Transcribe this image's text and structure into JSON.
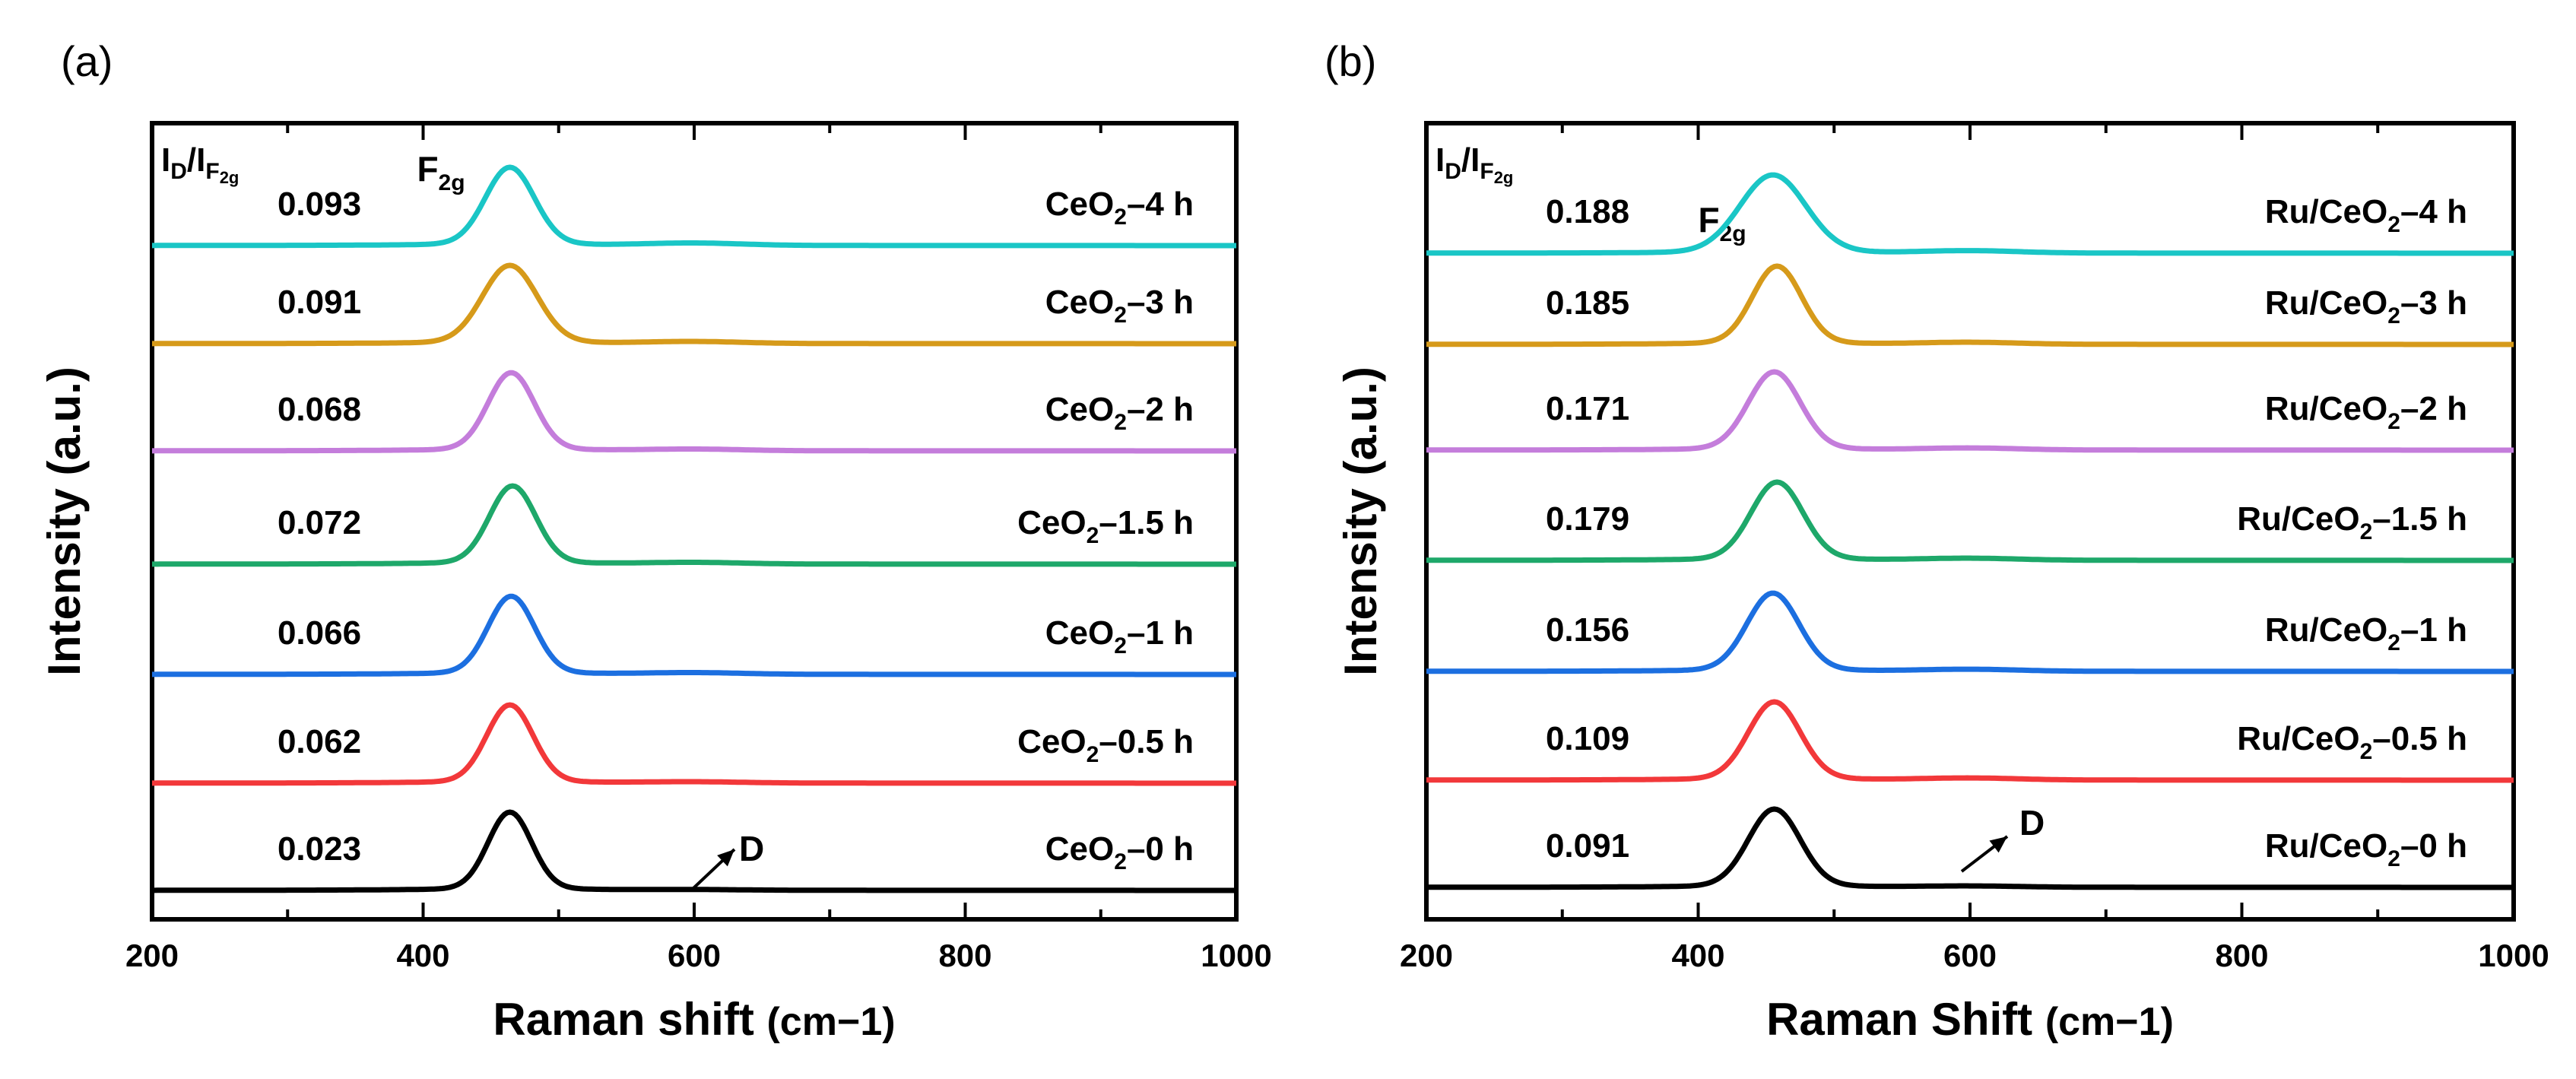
{
  "chart_data": [
    {
      "type": "line",
      "panel_label": "(a)",
      "xlabel": "Raman shift",
      "xunit": "(cm−1)",
      "ylabel": "Intensity (a.u.)",
      "xlim": [
        200,
        1000
      ],
      "xticks": [
        "200",
        "400",
        "600",
        "800",
        "1000"
      ],
      "y_ticks_shown": false,
      "ratio_header": "ID/IF2g",
      "peak_annotation": "F2g",
      "defect_annotation": "D",
      "f2g_peak_position": 464,
      "d_band_position": 600,
      "series": [
        {
          "name": "CeO2–4 h",
          "label_prefix": "CeO",
          "label_sub": "2",
          "label_suffix": "–4 h",
          "ratio": "0.093",
          "color": "#1ac6c6",
          "peak_center": 464,
          "peak_width": 18,
          "d_amp": 0.06
        },
        {
          "name": "CeO2–3 h",
          "label_prefix": "CeO",
          "label_sub": "2",
          "label_suffix": "–3 h",
          "ratio": "0.091",
          "color": "#d69a1a",
          "peak_center": 464,
          "peak_width": 20,
          "d_amp": 0.05
        },
        {
          "name": "CeO2–2 h",
          "label_prefix": "CeO",
          "label_sub": "2",
          "label_suffix": "–2 h",
          "ratio": "0.068",
          "color": "#c47ddb",
          "peak_center": 465,
          "peak_width": 17,
          "d_amp": 0.04
        },
        {
          "name": "CeO2–1.5 h",
          "label_prefix": "CeO",
          "label_sub": "2",
          "label_suffix": "–1.5 h",
          "ratio": "0.072",
          "color": "#1ea86a",
          "peak_center": 466,
          "peak_width": 17,
          "d_amp": 0.04
        },
        {
          "name": "CeO2–1 h",
          "label_prefix": "CeO",
          "label_sub": "2",
          "label_suffix": "–1 h",
          "ratio": "0.066",
          "color": "#1c6fe0",
          "peak_center": 465,
          "peak_width": 17,
          "d_amp": 0.04
        },
        {
          "name": "CeO2–0.5 h",
          "label_prefix": "CeO",
          "label_sub": "2",
          "label_suffix": "–0.5 h",
          "ratio": "0.062",
          "color": "#f2383a",
          "peak_center": 464,
          "peak_width": 17,
          "d_amp": 0.03
        },
        {
          "name": "CeO2–0 h",
          "label_prefix": "CeO",
          "label_sub": "2",
          "label_suffix": "–0 h",
          "ratio": "0.023",
          "color": "#000000",
          "peak_center": 464,
          "peak_width": 16,
          "d_amp": 0.015
        }
      ]
    },
    {
      "type": "line",
      "panel_label": "(b)",
      "xlabel": "Raman Shift",
      "xunit": "(cm−1)",
      "ylabel": "Intensity (a.u.)",
      "xlim": [
        200,
        1000
      ],
      "xticks": [
        "200",
        "400",
        "600",
        "800",
        "1000"
      ],
      "y_ticks_shown": false,
      "ratio_header": "ID/IF2g",
      "peak_annotation": "F2g",
      "defect_annotation": "D",
      "f2g_peak_position": 456,
      "d_band_position": 600,
      "series": [
        {
          "name": "Ru/CeO2–4 h",
          "label_prefix": "Ru/CeO",
          "label_sub": "2",
          "label_suffix": "–4 h",
          "ratio": "0.188",
          "color": "#1ac6c6",
          "peak_center": 455,
          "peak_width": 24,
          "d_amp": 0.06
        },
        {
          "name": "Ru/CeO2–3 h",
          "label_prefix": "Ru/CeO",
          "label_sub": "2",
          "label_suffix": "–3 h",
          "ratio": "0.185",
          "color": "#d69a1a",
          "peak_center": 458,
          "peak_width": 18,
          "d_amp": 0.05
        },
        {
          "name": "Ru/CeO2–2 h",
          "label_prefix": "Ru/CeO",
          "label_sub": "2",
          "label_suffix": "–2 h",
          "ratio": "0.171",
          "color": "#c47ddb",
          "peak_center": 456,
          "peak_width": 19,
          "d_amp": 0.05
        },
        {
          "name": "Ru/CeO2–1.5 h",
          "label_prefix": "Ru/CeO",
          "label_sub": "2",
          "label_suffix": "–1.5 h",
          "ratio": "0.179",
          "color": "#1ea86a",
          "peak_center": 458,
          "peak_width": 19,
          "d_amp": 0.05
        },
        {
          "name": "Ru/CeO2–1 h",
          "label_prefix": "Ru/CeO",
          "label_sub": "2",
          "label_suffix": "–1 h",
          "ratio": "0.156",
          "color": "#1c6fe0",
          "peak_center": 455,
          "peak_width": 19,
          "d_amp": 0.05
        },
        {
          "name": "Ru/CeO2–0.5 h",
          "label_prefix": "Ru/CeO",
          "label_sub": "2",
          "label_suffix": "–0.5 h",
          "ratio": "0.109",
          "color": "#f2383a",
          "peak_center": 456,
          "peak_width": 19,
          "d_amp": 0.05
        },
        {
          "name": "Ru/CeO2–0 h",
          "label_prefix": "Ru/CeO",
          "label_sub": "2",
          "label_suffix": "–0 h",
          "ratio": "0.091",
          "color": "#000000",
          "peak_center": 456,
          "peak_width": 19,
          "d_amp": 0.03
        }
      ]
    }
  ]
}
